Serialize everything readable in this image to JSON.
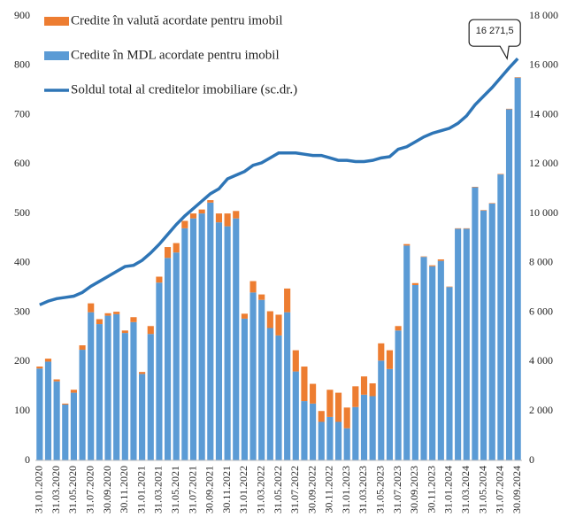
{
  "chart_data": {
    "type": "bar",
    "stacked": true,
    "categories": [
      "31.01.2020",
      null,
      "31.03.2020",
      null,
      "31.05.2020",
      null,
      "31.07.2020",
      null,
      "30.09.2020",
      null,
      "30.11.2020",
      null,
      "31.01.2021",
      null,
      "31.03.2021",
      null,
      "31.05.2021",
      null,
      "31.07.2021",
      null,
      "30.09.2021",
      null,
      "30.11.2021",
      null,
      "31.01.2022",
      null,
      "31.03.2022",
      null,
      "31.05.2022",
      null,
      "31.07.2022",
      null,
      "30.09.2022",
      null,
      "30.11.2022",
      null,
      "31.01.2023",
      null,
      "31.03.2023",
      null,
      "31.05.2023",
      null,
      "31.07.2023",
      null,
      "30.09.2023",
      null,
      "30.11.2023",
      null,
      "31.01.2024",
      null,
      "31.03.2024",
      null,
      "31.05.2024",
      null,
      "31.07.2024",
      null,
      "30.09.2024"
    ],
    "series": [
      {
        "name": "Credite în MDL acordate pentru imobil",
        "color": "#5b9bd5",
        "values": [
          186,
          200,
          160,
          113,
          137,
          224,
          300,
          276,
          293,
          296,
          258,
          280,
          175,
          256,
          360,
          410,
          421,
          470,
          490,
          500,
          522,
          482,
          474,
          490,
          287,
          340,
          325,
          268,
          253,
          300,
          180,
          120,
          115,
          78,
          88,
          78,
          65,
          108,
          133,
          130,
          202,
          185,
          263,
          435,
          355,
          412,
          393,
          404,
          351,
          469,
          469,
          553,
          506,
          520,
          579,
          711,
          775
        ]
      },
      {
        "name": "Credite în valută acordate pentru imobil",
        "color": "#ed7d31",
        "values": [
          4,
          6,
          4,
          2,
          6,
          9,
          18,
          10,
          5,
          5,
          5,
          10,
          4,
          16,
          12,
          22,
          19,
          15,
          10,
          8,
          5,
          18,
          26,
          15,
          10,
          23,
          11,
          34,
          42,
          48,
          43,
          70,
          40,
          22,
          55,
          59,
          42,
          42,
          37,
          26,
          35,
          38,
          9,
          3,
          4,
          1,
          2,
          3,
          1,
          1,
          1,
          1,
          1,
          1,
          1,
          1,
          1
        ]
      },
      {
        "name": "Soldul total al creditelor imobiliare (sc.dr.)",
        "color": "#2e75b6",
        "type": "line",
        "axis": "y2",
        "values": [
          6300,
          6450,
          6550,
          6600,
          6650,
          6800,
          7050,
          7250,
          7450,
          7650,
          7850,
          7900,
          8100,
          8400,
          8750,
          9150,
          9550,
          9900,
          10200,
          10500,
          10800,
          11000,
          11400,
          11550,
          11700,
          11950,
          12050,
          12250,
          12450,
          12450,
          12450,
          12400,
          12350,
          12350,
          12250,
          12150,
          12150,
          12100,
          12100,
          12150,
          12250,
          12300,
          12600,
          12700,
          12900,
          13100,
          13250,
          13350,
          13450,
          13650,
          13950,
          14400,
          14750,
          15100,
          15500,
          15900,
          16271.5
        ],
        "value_labels": [
          null,
          null,
          null,
          null,
          null,
          null,
          null,
          null,
          null,
          null,
          null,
          null,
          null,
          null,
          null,
          null,
          null,
          null,
          null,
          null,
          null,
          null,
          null,
          null,
          null,
          null,
          null,
          null,
          null,
          null,
          null,
          null,
          null,
          null,
          null,
          null,
          null,
          null,
          null,
          null,
          null,
          null,
          null,
          null,
          null,
          null,
          null,
          null,
          null,
          null,
          null,
          null,
          null,
          null,
          null,
          null,
          "16 271,5"
        ]
      }
    ],
    "ylim": [
      0,
      900
    ],
    "yticks": [
      0,
      100,
      200,
      300,
      400,
      500,
      600,
      700,
      800,
      900
    ],
    "y2lim": [
      0,
      18000
    ],
    "y2ticks": [
      0,
      {
        "value": 2000,
        "label": "2 000"
      },
      {
        "value": 4000,
        "label": "4 000"
      },
      {
        "value": 6000,
        "label": "6 000"
      },
      {
        "value": 8000,
        "label": "8 000"
      },
      {
        "value": 10000,
        "label": "10 000"
      },
      {
        "value": 12000,
        "label": "12 000"
      },
      {
        "value": 14000,
        "label": "14 000"
      },
      {
        "value": 16000,
        "label": "16 000"
      },
      {
        "value": 18000,
        "label": "18 000"
      }
    ],
    "legend_order": [
      1,
      0,
      2
    ],
    "legend": "top-left",
    "grid": false
  }
}
